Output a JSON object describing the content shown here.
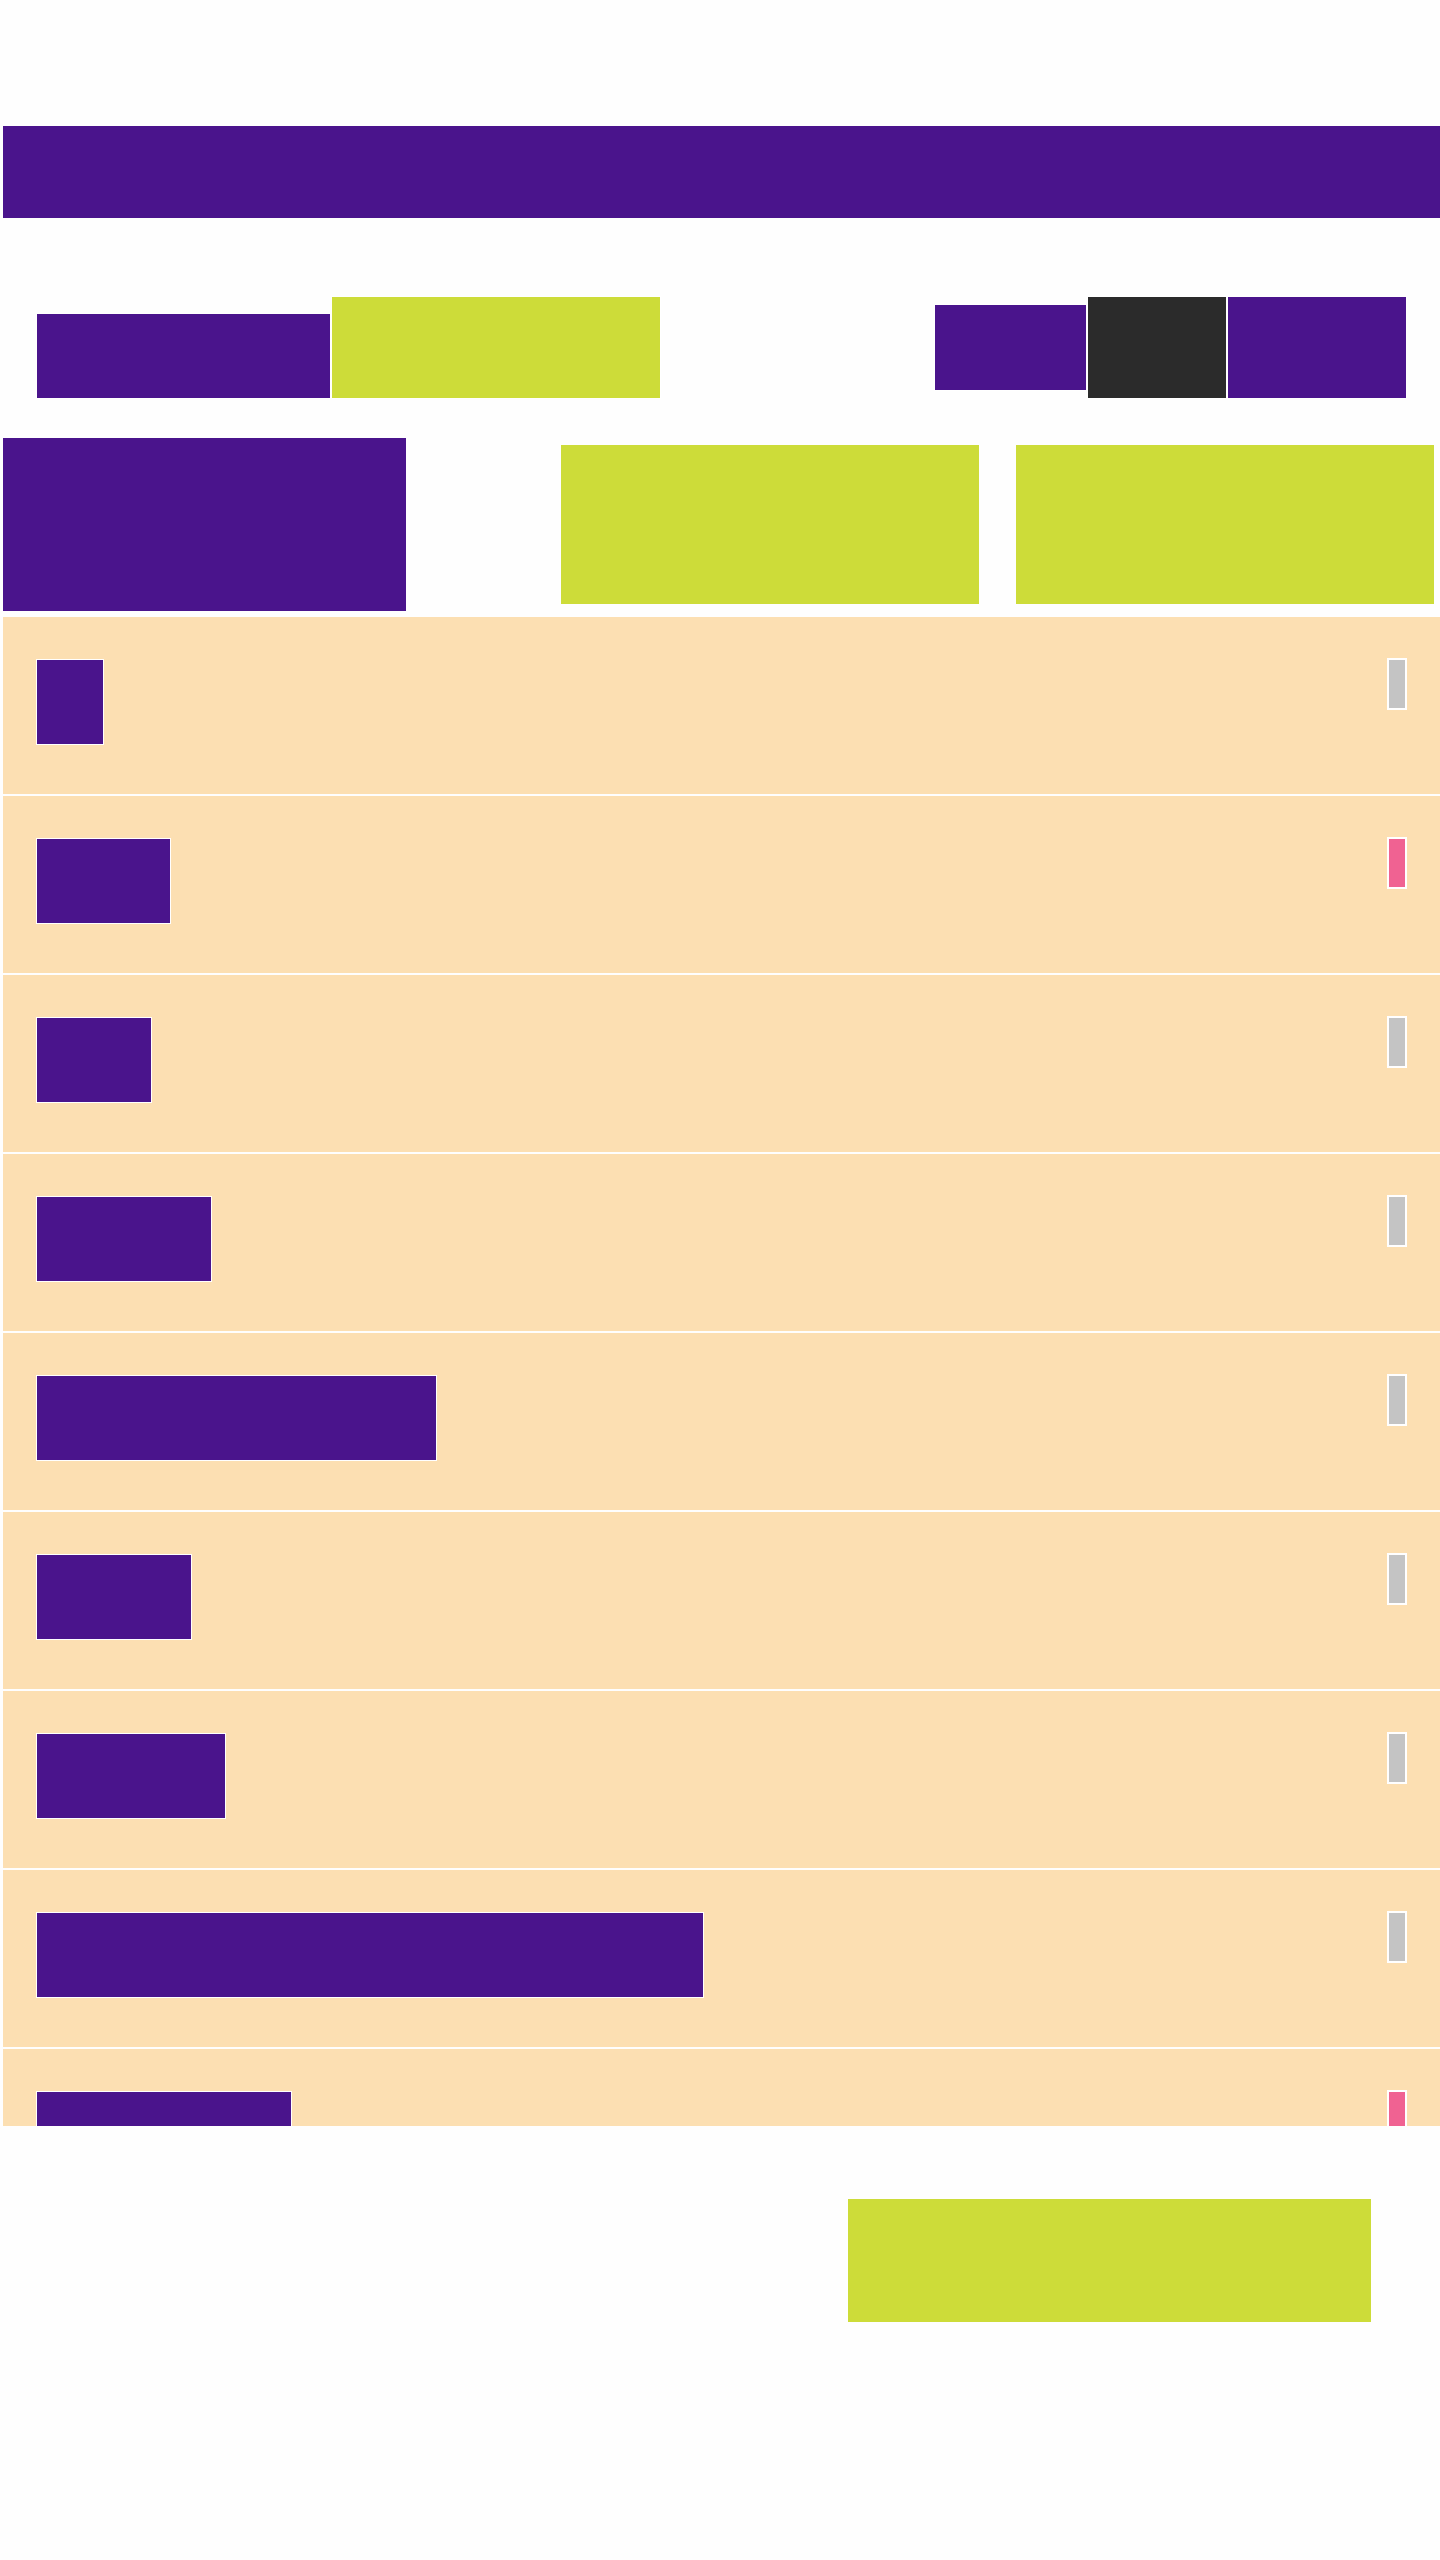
{
  "colors": {
    "primary": "#4a148c",
    "accent": "#cddc39",
    "dark": "#2b2b2b",
    "row_background": "#fcdfb2",
    "indicator_off": "#c4c4c4",
    "indicator_on": "#f06292"
  },
  "rows": [
    {
      "indicator": "off"
    },
    {
      "indicator": "on"
    },
    {
      "indicator": "off"
    },
    {
      "indicator": "off"
    },
    {
      "indicator": "off"
    },
    {
      "indicator": "off"
    },
    {
      "indicator": "off"
    },
    {
      "indicator": "off"
    },
    {
      "indicator": "on"
    }
  ]
}
